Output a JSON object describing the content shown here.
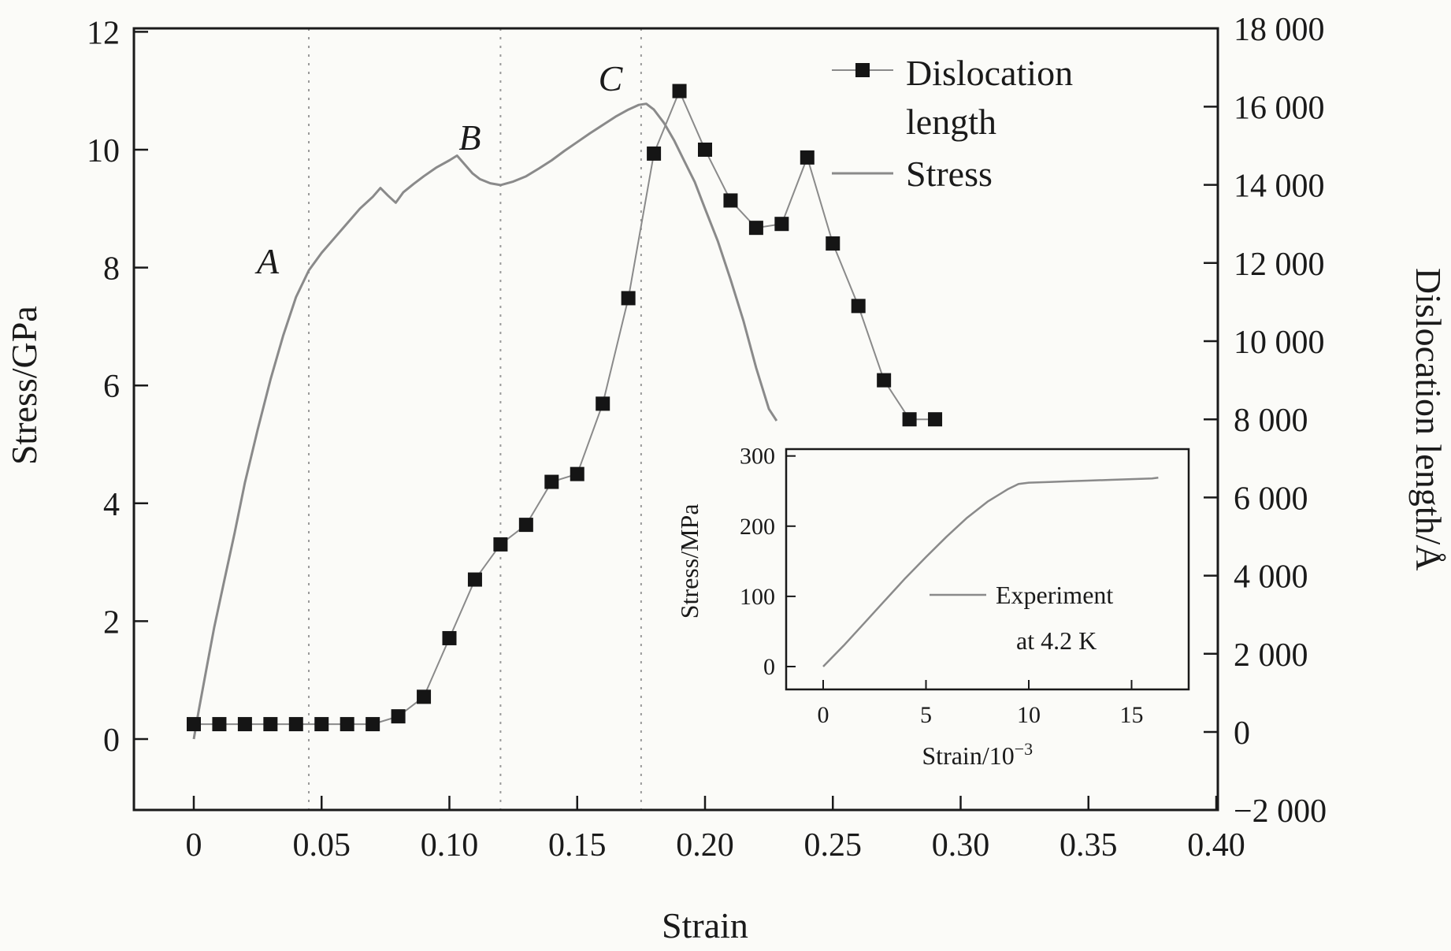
{
  "colors": {
    "axis": "#1a1a1a",
    "text": "#1a1a1a",
    "stress_line": "#8a8a8a",
    "marker": "#151515",
    "dotted_line": "#9a9a9a",
    "background": "#fbfbf8"
  },
  "chart_data": [
    {
      "id": "main",
      "type": "line",
      "title": "",
      "xlabel": "Strain",
      "ylabel_left": "Stress/GPa",
      "ylabel_right": "Dislocation length/Å",
      "xlim": [
        0,
        0.4
      ],
      "xticks": [
        0,
        0.05,
        0.1,
        0.15,
        0.2,
        0.25,
        0.3,
        0.35,
        0.4
      ],
      "xtick_labels": [
        "0",
        "0.05",
        "0.10",
        "0.15",
        "0.20",
        "0.25",
        "0.30",
        "0.35",
        "0.40"
      ],
      "ylim_left": [
        0,
        12
      ],
      "yticks_left": [
        0,
        2,
        4,
        6,
        8,
        10,
        12
      ],
      "ytick_labels_left": [
        "0",
        "2",
        "4",
        "6",
        "8",
        "10",
        "12"
      ],
      "ylim_right": [
        -2000,
        18000
      ],
      "yticks_right": [
        -2000,
        0,
        2000,
        4000,
        6000,
        8000,
        10000,
        12000,
        14000,
        16000,
        18000
      ],
      "ytick_labels_right": [
        "−2 000",
        "0",
        "2 000",
        "4 000",
        "6 000",
        "8 000",
        "10 000",
        "12 000",
        "14 000",
        "16 000",
        "18 000"
      ],
      "grid": false,
      "legend_position": "upper right",
      "legend": [
        {
          "id": "dislocation",
          "label": "Dislocation length",
          "lines": [
            "Dislocation",
            "length"
          ],
          "marker": "filled-square"
        },
        {
          "id": "stress",
          "label": "Stress",
          "lines": [
            "Stress"
          ],
          "marker": "line"
        }
      ],
      "vlines": [
        0.045,
        0.12,
        0.175
      ],
      "annotations": [
        {
          "label": "A",
          "x": 0.029,
          "y": 7.9
        },
        {
          "label": "B",
          "x": 0.108,
          "y": 10.0
        },
        {
          "label": "C",
          "x": 0.163,
          "y": 11.0
        }
      ],
      "series": [
        {
          "id": "stress",
          "name": "Stress",
          "axis": "left",
          "style": "line",
          "points": [
            [
              0,
              0.0
            ],
            [
              0.002,
              0.5
            ],
            [
              0.005,
              1.2
            ],
            [
              0.008,
              1.9
            ],
            [
              0.012,
              2.7
            ],
            [
              0.016,
              3.5
            ],
            [
              0.02,
              4.35
            ],
            [
              0.025,
              5.25
            ],
            [
              0.03,
              6.1
            ],
            [
              0.035,
              6.85
            ],
            [
              0.04,
              7.5
            ],
            [
              0.045,
              7.95
            ],
            [
              0.05,
              8.25
            ],
            [
              0.055,
              8.5
            ],
            [
              0.06,
              8.75
            ],
            [
              0.065,
              9.0
            ],
            [
              0.07,
              9.2
            ],
            [
              0.073,
              9.35
            ],
            [
              0.076,
              9.22
            ],
            [
              0.079,
              9.1
            ],
            [
              0.082,
              9.28
            ],
            [
              0.086,
              9.42
            ],
            [
              0.09,
              9.55
            ],
            [
              0.095,
              9.7
            ],
            [
              0.1,
              9.82
            ],
            [
              0.103,
              9.9
            ],
            [
              0.106,
              9.75
            ],
            [
              0.109,
              9.6
            ],
            [
              0.112,
              9.5
            ],
            [
              0.116,
              9.43
            ],
            [
              0.12,
              9.4
            ],
            [
              0.125,
              9.46
            ],
            [
              0.13,
              9.55
            ],
            [
              0.135,
              9.68
            ],
            [
              0.14,
              9.82
            ],
            [
              0.145,
              9.98
            ],
            [
              0.15,
              10.13
            ],
            [
              0.155,
              10.28
            ],
            [
              0.16,
              10.42
            ],
            [
              0.165,
              10.56
            ],
            [
              0.17,
              10.68
            ],
            [
              0.174,
              10.76
            ],
            [
              0.177,
              10.78
            ],
            [
              0.18,
              10.68
            ],
            [
              0.184,
              10.45
            ],
            [
              0.188,
              10.15
            ],
            [
              0.192,
              9.8
            ],
            [
              0.196,
              9.45
            ],
            [
              0.2,
              9.0
            ],
            [
              0.205,
              8.45
            ],
            [
              0.21,
              7.8
            ],
            [
              0.215,
              7.1
            ],
            [
              0.22,
              6.3
            ],
            [
              0.225,
              5.6
            ],
            [
              0.228,
              5.4
            ]
          ]
        },
        {
          "id": "dislocation",
          "name": "Dislocation length",
          "axis": "right",
          "style": "line+square-markers",
          "x": [
            0,
            0.01,
            0.02,
            0.03,
            0.04,
            0.05,
            0.06,
            0.07,
            0.08,
            0.09,
            0.1,
            0.11,
            0.12,
            0.13,
            0.14,
            0.15,
            0.16,
            0.17,
            0.18,
            0.19,
            0.2,
            0.21,
            0.22,
            0.23,
            0.24,
            0.25,
            0.26,
            0.27,
            0.28,
            0.29
          ],
          "y": [
            200,
            200,
            200,
            200,
            200,
            200,
            200,
            200,
            400,
            900,
            2400,
            3900,
            4800,
            5300,
            6400,
            6600,
            8400,
            11100,
            14800,
            16400,
            14900,
            13600,
            12900,
            13000,
            14700,
            12500,
            10900,
            9000,
            8000,
            8000
          ]
        }
      ]
    },
    {
      "id": "inset",
      "type": "line",
      "title": "",
      "xlabel_parts": {
        "base": "Strain/10",
        "superscript": "−3"
      },
      "ylabel": "Stress/MPa",
      "xlim": [
        0,
        16.3
      ],
      "xticks": [
        0,
        5,
        10,
        15
      ],
      "xtick_labels": [
        "0",
        "5",
        "10",
        "15"
      ],
      "ylim": [
        0,
        300
      ],
      "yticks": [
        0,
        100,
        200,
        300
      ],
      "ytick_labels": [
        "0",
        "100",
        "200",
        "300"
      ],
      "grid": false,
      "legend": [
        {
          "id": "experiment",
          "label": "Experiment at 4.2 K",
          "lines": [
            "Experiment",
            "at 4.2 K"
          ],
          "marker": "line"
        }
      ],
      "series": [
        {
          "id": "experiment",
          "name": "Experiment at 4.2 K",
          "style": "line",
          "points": [
            [
              0,
              0
            ],
            [
              1,
              30
            ],
            [
              2,
              62
            ],
            [
              3,
              94
            ],
            [
              4,
              126
            ],
            [
              5,
              156
            ],
            [
              6,
              185
            ],
            [
              7,
              212
            ],
            [
              8,
              235
            ],
            [
              9,
              253
            ],
            [
              9.5,
              260
            ],
            [
              10,
              262
            ],
            [
              11,
              263
            ],
            [
              12,
              264
            ],
            [
              13,
              265
            ],
            [
              14,
              266
            ],
            [
              15,
              267
            ],
            [
              16,
              268
            ],
            [
              16.3,
              269
            ]
          ]
        }
      ]
    }
  ]
}
